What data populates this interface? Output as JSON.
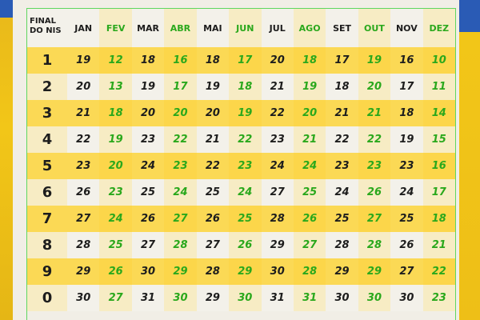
{
  "header": {
    "corner_line1": "FINAL",
    "corner_line2_prefix": "DO ",
    "corner_line2_bold": "NIS"
  },
  "months": [
    "JAN",
    "FEV",
    "MAR",
    "ABR",
    "MAI",
    "JUN",
    "JUL",
    "AGO",
    "SET",
    "OUT",
    "NOV",
    "DEZ"
  ],
  "colors": {
    "green": "#2aa81c",
    "black": "#1d1d1d",
    "yellow_row": "#fbd955",
    "border": "#5fd65f"
  },
  "rows": [
    {
      "final": "1",
      "days": [
        "19",
        "12",
        "18",
        "16",
        "18",
        "17",
        "20",
        "18",
        "17",
        "19",
        "16",
        "10"
      ]
    },
    {
      "final": "2",
      "days": [
        "20",
        "13",
        "19",
        "17",
        "19",
        "18",
        "21",
        "19",
        "18",
        "20",
        "17",
        "11"
      ]
    },
    {
      "final": "3",
      "days": [
        "21",
        "18",
        "20",
        "20",
        "20",
        "19",
        "22",
        "20",
        "21",
        "21",
        "18",
        "14"
      ]
    },
    {
      "final": "4",
      "days": [
        "22",
        "19",
        "23",
        "22",
        "21",
        "22",
        "23",
        "21",
        "22",
        "22",
        "19",
        "15"
      ]
    },
    {
      "final": "5",
      "days": [
        "23",
        "20",
        "24",
        "23",
        "22",
        "23",
        "24",
        "24",
        "23",
        "23",
        "23",
        "16"
      ]
    },
    {
      "final": "6",
      "days": [
        "26",
        "23",
        "25",
        "24",
        "25",
        "24",
        "27",
        "25",
        "24",
        "26",
        "24",
        "17"
      ]
    },
    {
      "final": "7",
      "days": [
        "27",
        "24",
        "26",
        "27",
        "26",
        "25",
        "28",
        "26",
        "25",
        "27",
        "25",
        "18"
      ]
    },
    {
      "final": "8",
      "days": [
        "28",
        "25",
        "27",
        "28",
        "27",
        "26",
        "29",
        "27",
        "28",
        "28",
        "26",
        "21"
      ]
    },
    {
      "final": "9",
      "days": [
        "29",
        "26",
        "30",
        "29",
        "28",
        "29",
        "30",
        "28",
        "29",
        "29",
        "27",
        "22"
      ]
    },
    {
      "final": "0",
      "days": [
        "30",
        "27",
        "31",
        "30",
        "29",
        "30",
        "31",
        "31",
        "30",
        "30",
        "30",
        "23"
      ]
    }
  ]
}
